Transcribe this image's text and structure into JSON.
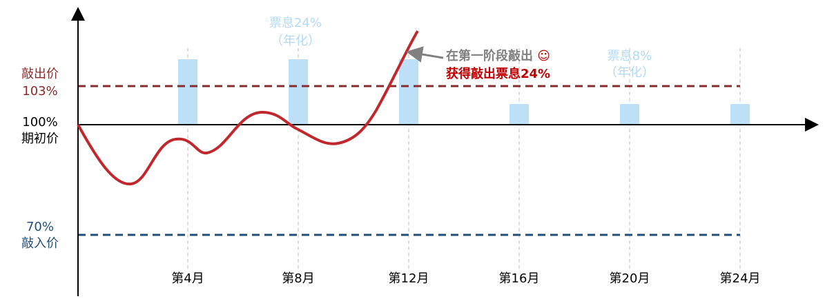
{
  "left_labels": [
    [
      "敲出价",
      "103%"
    ],
    [
      "100%",
      "期初价"
    ],
    [
      "70%",
      "敲入价"
    ]
  ],
  "months": [
    "第4月",
    "第8月",
    "第12月",
    "第16月",
    "第20月",
    "第24月"
  ],
  "coupon_notes": [
    [
      "票息24%",
      "（年化）"
    ],
    [
      "票息8%",
      "（年化）"
    ]
  ],
  "callout": {
    "text": "在第一阶段敲出",
    "emoji": "☺",
    "result": "获得敲出票息24%"
  }
}
